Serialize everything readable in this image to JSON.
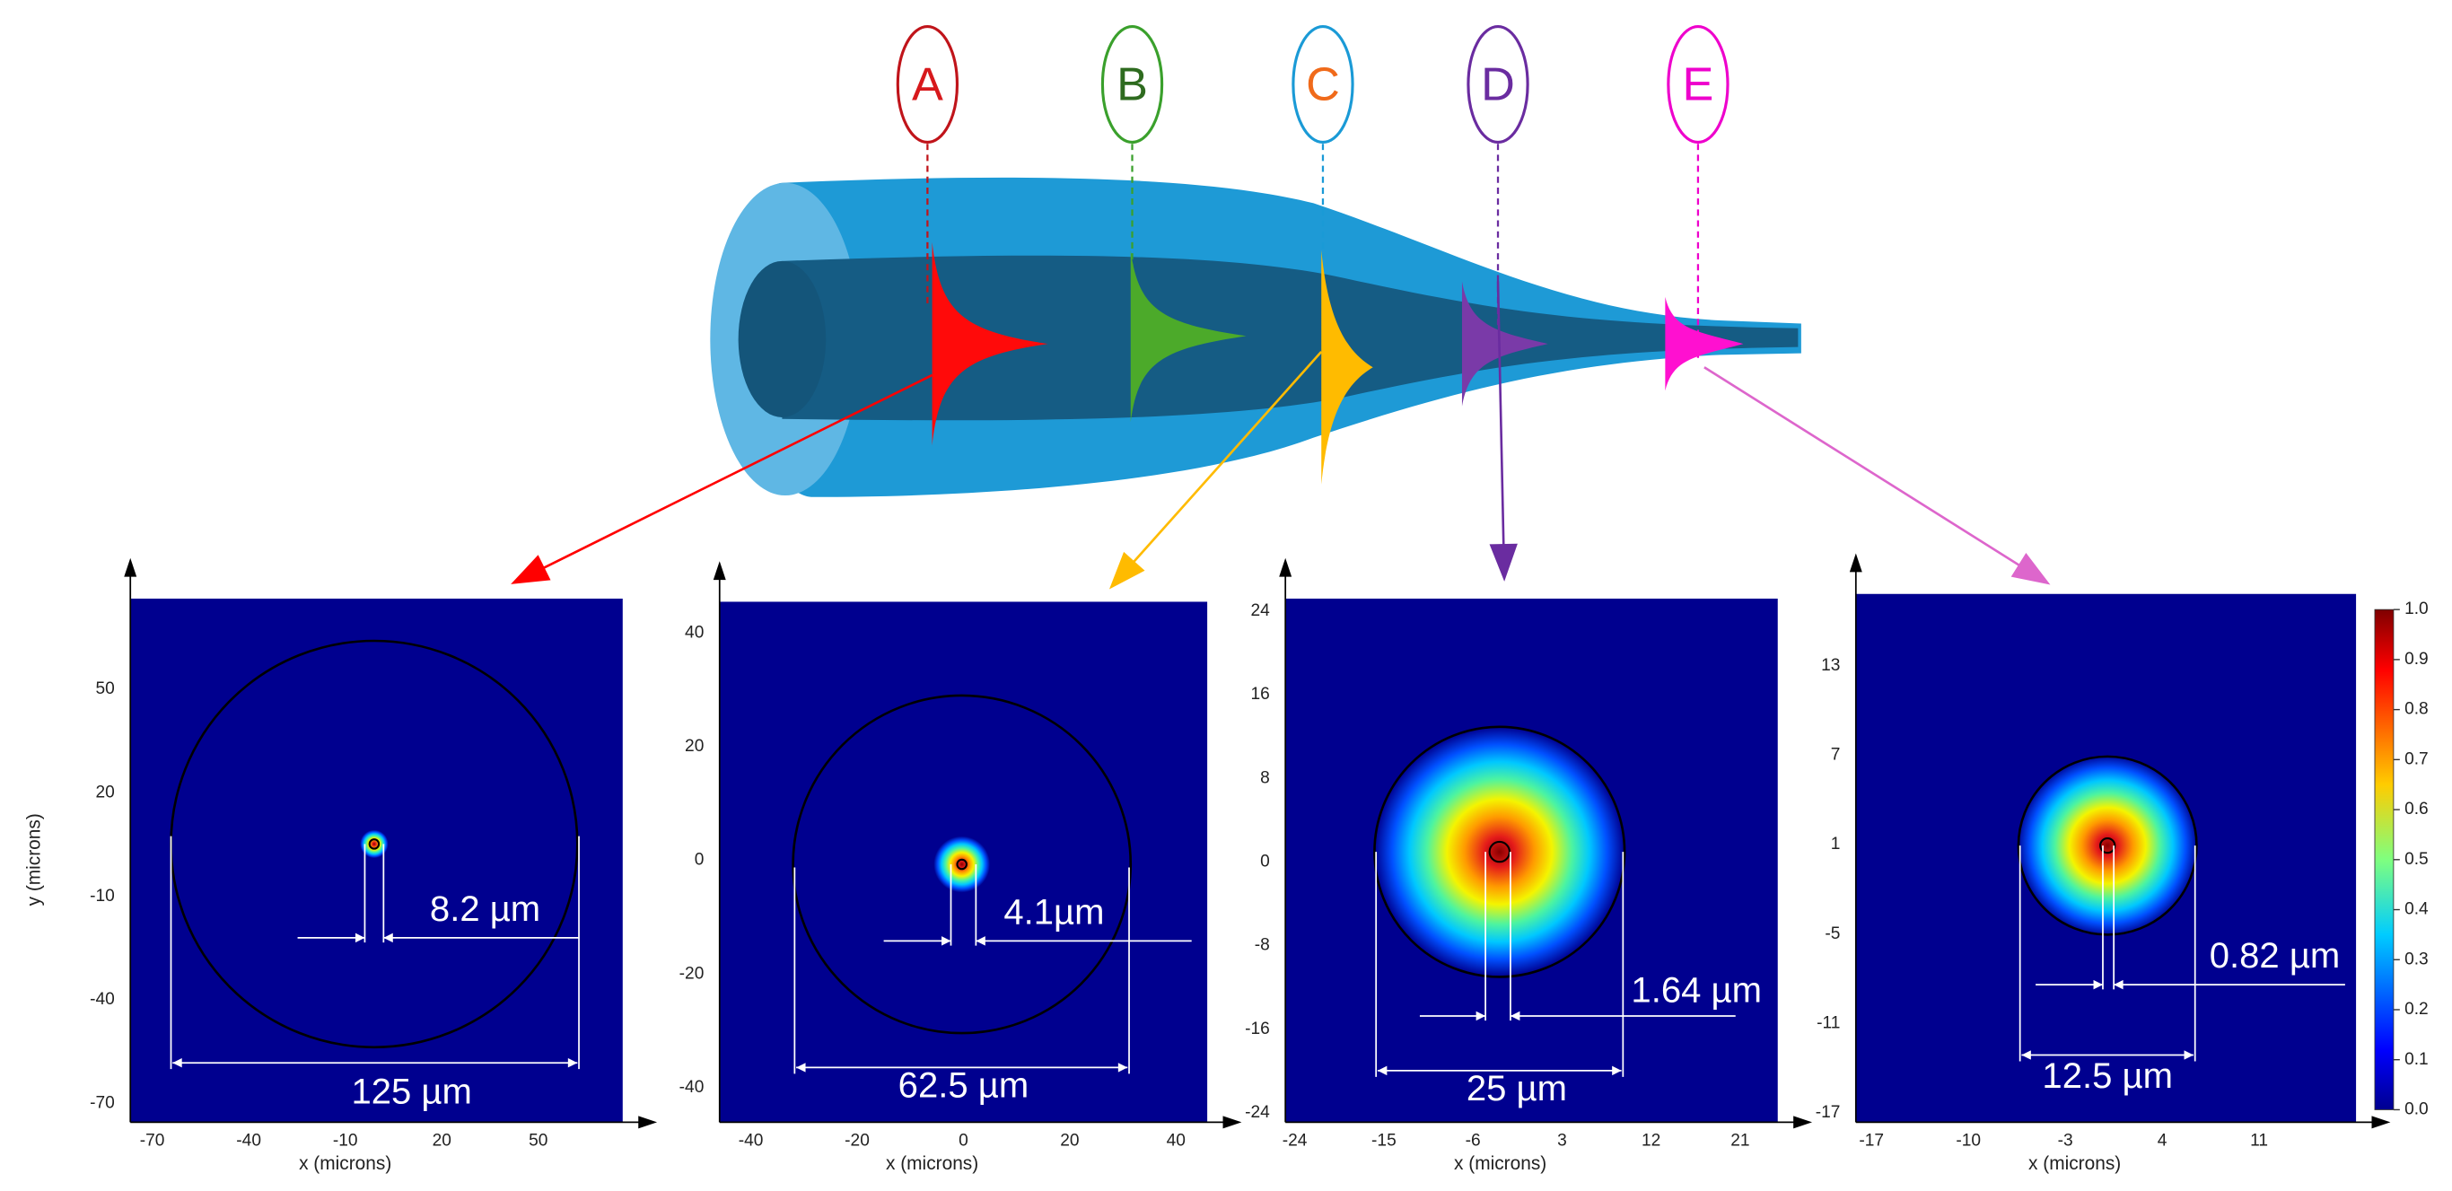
{
  "stages": [
    {
      "label": "A",
      "color": "#d7191c"
    },
    {
      "label": "B",
      "color": "#2e6b1f"
    },
    {
      "label": "C",
      "color": "#f06a1a"
    },
    {
      "label": "D",
      "color": "#6a2ca0"
    },
    {
      "label": "E",
      "color": "#ee00cc"
    }
  ],
  "y_label": "y (microns)",
  "panels": [
    {
      "x_label": "x (microns)",
      "xticks": [
        -70,
        -40,
        -10,
        20,
        50
      ],
      "yticks": [
        50,
        20,
        -10,
        -40,
        -70
      ],
      "core_label": "8.2 µm",
      "clad_label": "125 µm"
    },
    {
      "x_label": "x (microns)",
      "xticks": [
        -40,
        -20,
        0,
        20,
        40
      ],
      "yticks": [
        40,
        20,
        0,
        -20,
        -40
      ],
      "core_label": "4.1µm",
      "clad_label": "62.5 µm"
    },
    {
      "x_label": "x (microns)",
      "xticks": [
        -24,
        -15,
        -6,
        3,
        12,
        21
      ],
      "yticks": [
        24,
        16,
        8,
        0,
        -8,
        -16,
        -24
      ],
      "core_label": "1.64 µm",
      "clad_label": "25 µm"
    },
    {
      "x_label": "x (microns)",
      "xticks": [
        -17,
        -10,
        -3,
        4,
        11
      ],
      "yticks": [
        13,
        7,
        1,
        -5,
        -11,
        -17
      ],
      "core_label": "0.82 µm",
      "clad_label": "12.5 µm"
    }
  ],
  "colorbar": {
    "ticks": [
      "1.0",
      "0.9",
      "0.8",
      "0.7",
      "0.6",
      "0.5",
      "0.4",
      "0.3",
      "0.2",
      "0.1",
      "0.0"
    ]
  }
}
